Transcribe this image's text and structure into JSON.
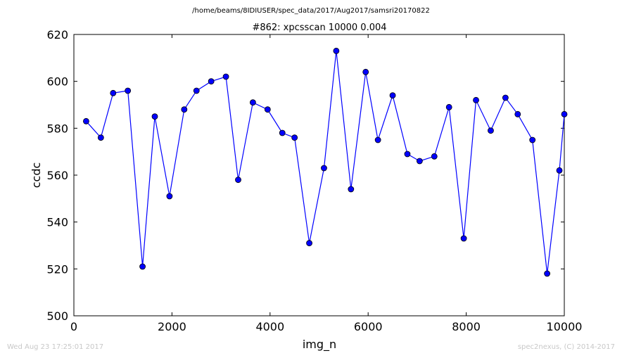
{
  "header": {
    "file_path": "/home/beams/8IDIUSER/spec_data/2017/Aug2017/samsri20170822"
  },
  "footer": {
    "timestamp": "Wed Aug 23 17:25:01 2017",
    "credit": "spec2nexus, (C) 2014-2017"
  },
  "colors": {
    "series": "#0000ff",
    "marker_edge": "#000000"
  },
  "chart_data": {
    "type": "line",
    "title": "#862: xpcsscan 10000 0.004",
    "xlabel": "img_n",
    "ylabel": "ccdc",
    "xlim": [
      0,
      10000
    ],
    "ylim": [
      500,
      620
    ],
    "xticks": [
      "0",
      "2000",
      "4000",
      "6000",
      "8000",
      "10000"
    ],
    "yticks": [
      "500",
      "520",
      "540",
      "560",
      "580",
      "600",
      "620"
    ],
    "grid": false,
    "markers": "circle",
    "series": [
      {
        "x": [
          250,
          550,
          800,
          1100,
          1400,
          1650,
          1950,
          2250,
          2500,
          2800,
          3100,
          3350,
          3650,
          3950,
          4250,
          4500,
          4800,
          5100,
          5350,
          5650,
          5950,
          6200,
          6500,
          6800,
          7050,
          7350,
          7650,
          7950,
          8200,
          8500,
          8800,
          9050,
          9350,
          9650,
          9900,
          10000
        ],
        "y": [
          583,
          576,
          595,
          596,
          521,
          585,
          551,
          588,
          596,
          600,
          602,
          558,
          591,
          588,
          578,
          576,
          531,
          563,
          613,
          554,
          604,
          575,
          594,
          569,
          566,
          568,
          589,
          533,
          592,
          579,
          593,
          586,
          575,
          518,
          562,
          586
        ]
      }
    ]
  }
}
